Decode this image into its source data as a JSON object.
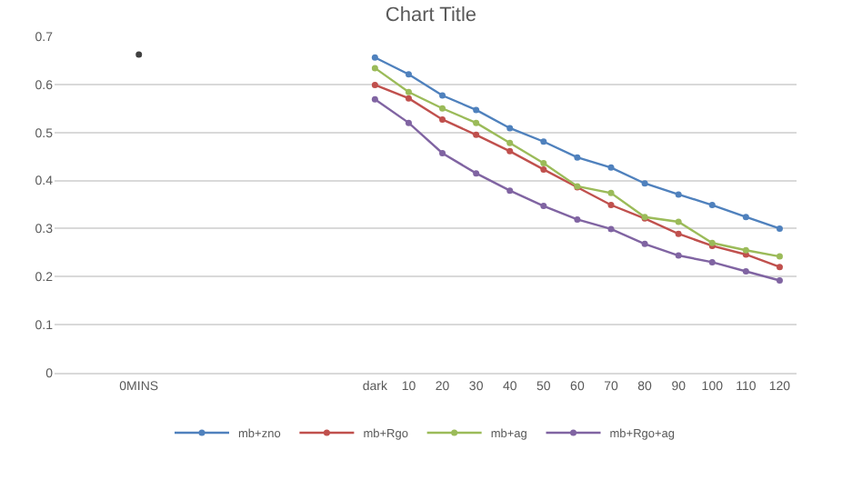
{
  "chart_data": {
    "type": "line",
    "title": "Chart Title",
    "categories": [
      null,
      null,
      "0MINS",
      null,
      null,
      null,
      null,
      null,
      null,
      "dark",
      "10",
      "20",
      "30",
      "40",
      "50",
      "60",
      "70",
      "80",
      "90",
      "100",
      "110",
      "120"
    ],
    "series": [
      {
        "name": "mb+zno",
        "color": "#4f81bd",
        "values": [
          null,
          null,
          null,
          null,
          null,
          null,
          null,
          null,
          null,
          0.656,
          0.621,
          0.577,
          0.547,
          0.509,
          0.481,
          0.448,
          0.427,
          0.394,
          0.371,
          0.349,
          0.324,
          0.3
        ]
      },
      {
        "name": "mb+Rgo",
        "color": "#c0504d",
        "values": [
          null,
          null,
          null,
          null,
          null,
          null,
          null,
          null,
          null,
          0.599,
          0.571,
          0.527,
          0.495,
          0.461,
          0.423,
          0.386,
          0.349,
          0.321,
          0.289,
          0.264,
          0.246,
          0.22
        ]
      },
      {
        "name": "mb+ag",
        "color": "#9bbb59",
        "values": [
          null,
          null,
          null,
          null,
          null,
          null,
          null,
          null,
          null,
          0.634,
          0.584,
          0.55,
          0.52,
          0.478,
          0.436,
          0.388,
          0.374,
          0.324,
          0.314,
          0.27,
          0.255,
          0.242
        ]
      },
      {
        "name": "mb+Rgo+ag",
        "color": "#8064a2",
        "values": [
          null,
          null,
          null,
          null,
          null,
          null,
          null,
          null,
          null,
          0.569,
          0.52,
          0.457,
          0.415,
          0.379,
          0.347,
          0.319,
          0.299,
          0.268,
          0.244,
          0.23,
          0.211,
          0.192
        ]
      },
      {
        "type": "scatter",
        "color": "#404040",
        "values": [
          null,
          null,
          0.662,
          null,
          null,
          null,
          null,
          null,
          null,
          null,
          null,
          null,
          null,
          null,
          null,
          null,
          null,
          null,
          null,
          null,
          null,
          null
        ]
      }
    ],
    "ylim": [
      0,
      0.7
    ],
    "yticks": [
      0,
      0.1,
      0.2,
      0.3,
      0.4,
      0.5,
      0.6,
      0.7
    ],
    "grid": "y",
    "legend": "bottom",
    "marker": "circle",
    "line_style": "solid"
  }
}
